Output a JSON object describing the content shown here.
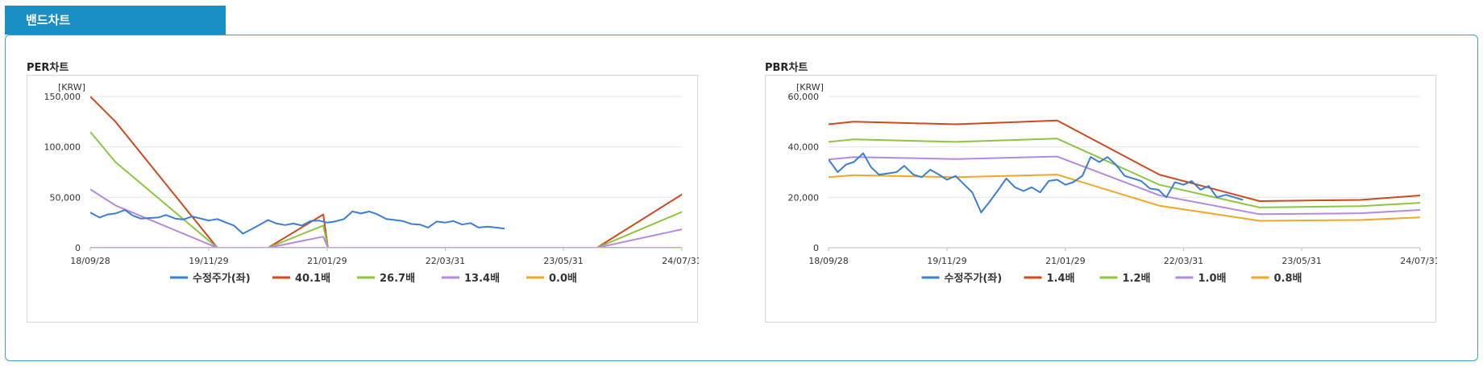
{
  "tab": {
    "label": "밴드차트"
  },
  "charts": [
    {
      "panel_title": "PER차트",
      "chart_data": {
        "type": "line",
        "title": "PER차트",
        "ylabel": "[KRW]",
        "y_ticks": [
          0,
          50000,
          100000,
          150000
        ],
        "y_tick_labels": [
          "0",
          "50,000",
          "100,000",
          "150,000"
        ],
        "ylim": [
          0,
          150000
        ],
        "x_ticks": [
          "18/09/28",
          "19/11/29",
          "21/01/29",
          "22/03/31",
          "23/05/31",
          "24/07/31"
        ],
        "xlim": [
          "2018-09-28",
          "2024-07-31"
        ],
        "legend_position": "bottom",
        "grid": true,
        "series": [
          {
            "name": "수정주가(좌)",
            "color": "#3a7fd5",
            "x": [
              "2018-09-28",
              "2018-10-31",
              "2018-11-30",
              "2018-12-28",
              "2019-01-31",
              "2019-02-28",
              "2019-03-29",
              "2019-04-30",
              "2019-05-31",
              "2019-06-28",
              "2019-07-31",
              "2019-08-30",
              "2019-09-30",
              "2019-10-31",
              "2019-11-29",
              "2019-12-30",
              "2020-01-31",
              "2020-02-28",
              "2020-03-31",
              "2020-04-29",
              "2020-05-29",
              "2020-06-30",
              "2020-07-31",
              "2020-08-31",
              "2020-09-29",
              "2020-10-30",
              "2020-11-30",
              "2020-12-30",
              "2021-01-29",
              "2021-02-26",
              "2021-03-31",
              "2021-04-30",
              "2021-05-31",
              "2021-06-30",
              "2021-07-30",
              "2021-08-31",
              "2021-09-30",
              "2021-10-29",
              "2021-11-30",
              "2021-12-30",
              "2022-01-28",
              "2022-02-28",
              "2022-03-31",
              "2022-04-29",
              "2022-05-31",
              "2022-06-30",
              "2022-07-29",
              "2022-08-31",
              "2022-09-30",
              "2022-10-31"
            ],
            "y": [
              35000,
              30000,
              33000,
              34000,
              37500,
              32000,
              29000,
              29500,
              30000,
              32500,
              29000,
              28000,
              31000,
              29000,
              27000,
              28500,
              25000,
              22000,
              14000,
              18000,
              22500,
              27500,
              24000,
              22500,
              24000,
              22000,
              26500,
              27000,
              25000,
              26000,
              28500,
              36000,
              34000,
              36000,
              33000,
              28500,
              27500,
              26500,
              23500,
              23000,
              20000,
              26000,
              25000,
              26500,
              23000,
              24500,
              20000,
              21000,
              20000,
              19000
            ]
          },
          {
            "name": "40.1배",
            "color": "#cc4a1e",
            "x": [
              "2018-09-28",
              "2018-12-28",
              "2019-12-30",
              "2020-06-30",
              "2021-01-15",
              "2021-02-01",
              "2023-09-29",
              "2024-08-30"
            ],
            "y": [
              150000,
              125000,
              0,
              0,
              33000,
              0,
              0,
              58000
            ]
          },
          {
            "name": "26.7배",
            "color": "#8dc63f",
            "x": [
              "2018-09-28",
              "2018-12-28",
              "2019-12-30",
              "2020-06-30",
              "2021-01-15",
              "2021-02-01",
              "2023-09-29",
              "2024-08-30"
            ],
            "y": [
              115000,
              85000,
              0,
              0,
              22000,
              0,
              0,
              39000
            ]
          },
          {
            "name": "13.4배",
            "color": "#b48ae0",
            "x": [
              "2018-09-28",
              "2018-12-28",
              "2019-12-30",
              "2020-06-30",
              "2021-01-15",
              "2021-02-01",
              "2023-09-29",
              "2024-08-30"
            ],
            "y": [
              58000,
              42000,
              0,
              0,
              11000,
              0,
              0,
              20000
            ]
          },
          {
            "name": "0.0배",
            "color": "#f5a623",
            "x": [
              "2018-09-28",
              "2024-08-30"
            ],
            "y": [
              0,
              0
            ]
          }
        ]
      }
    },
    {
      "panel_title": "PBR차트",
      "chart_data": {
        "type": "line",
        "title": "PBR차트",
        "ylabel": "[KRW]",
        "y_ticks": [
          0,
          20000,
          40000,
          60000
        ],
        "y_tick_labels": [
          "0",
          "20,000",
          "40,000",
          "60,000"
        ],
        "ylim": [
          0,
          60000
        ],
        "x_ticks": [
          "18/09/28",
          "19/11/29",
          "21/01/29",
          "22/03/31",
          "23/05/31",
          "24/07/31"
        ],
        "xlim": [
          "2018-09-28",
          "2024-07-31"
        ],
        "legend_position": "bottom",
        "grid": true,
        "series": [
          {
            "name": "수정주가(좌)",
            "color": "#3a7fd5",
            "x": [
              "2018-09-28",
              "2018-10-31",
              "2018-11-30",
              "2018-12-28",
              "2019-01-31",
              "2019-02-28",
              "2019-03-29",
              "2019-04-30",
              "2019-05-31",
              "2019-06-28",
              "2019-07-31",
              "2019-08-30",
              "2019-09-30",
              "2019-10-31",
              "2019-11-29",
              "2019-12-30",
              "2020-01-31",
              "2020-02-28",
              "2020-03-31",
              "2020-04-29",
              "2020-05-29",
              "2020-06-30",
              "2020-07-31",
              "2020-08-31",
              "2020-09-29",
              "2020-10-30",
              "2020-11-30",
              "2020-12-30",
              "2021-01-29",
              "2021-02-26",
              "2021-03-31",
              "2021-04-30",
              "2021-05-31",
              "2021-06-30",
              "2021-07-30",
              "2021-08-31",
              "2021-09-30",
              "2021-10-29",
              "2021-11-30",
              "2021-12-30",
              "2022-01-28",
              "2022-02-28",
              "2022-03-31",
              "2022-04-29",
              "2022-05-31",
              "2022-06-30",
              "2022-07-29",
              "2022-08-31",
              "2022-09-30",
              "2022-10-31"
            ],
            "y": [
              35000,
              30000,
              33000,
              34000,
              37500,
              32000,
              29000,
              29500,
              30000,
              32500,
              29000,
              28000,
              31000,
              29000,
              27000,
              28500,
              25000,
              22000,
              14000,
              18000,
              22500,
              27500,
              24000,
              22500,
              24000,
              22000,
              26500,
              27000,
              25000,
              26000,
              28500,
              36000,
              34000,
              36000,
              33000,
              28500,
              27500,
              26500,
              23500,
              23000,
              20000,
              26000,
              25000,
              26500,
              23000,
              24500,
              20000,
              21000,
              20000,
              19000
            ]
          },
          {
            "name": "1.4배",
            "color": "#cc4a1e",
            "x": [
              "2018-09-28",
              "2018-12-28",
              "2019-12-30",
              "2020-12-30",
              "2022-01-03",
              "2022-12-30",
              "2023-12-29",
              "2024-08-30"
            ],
            "y": [
              49000,
              50000,
              49000,
              50500,
              29000,
              18500,
              19000,
              21000
            ]
          },
          {
            "name": "1.2배",
            "color": "#8dc63f",
            "x": [
              "2018-09-28",
              "2018-12-28",
              "2019-12-30",
              "2020-12-30",
              "2022-01-03",
              "2022-12-30",
              "2023-12-29",
              "2024-08-30"
            ],
            "y": [
              42000,
              43000,
              42000,
              43300,
              25000,
              16000,
              16500,
              18000
            ]
          },
          {
            "name": "1.0배",
            "color": "#b48ae0",
            "x": [
              "2018-09-28",
              "2018-12-28",
              "2019-12-30",
              "2020-12-30",
              "2022-01-03",
              "2022-12-30",
              "2023-12-29",
              "2024-08-30"
            ],
            "y": [
              35000,
              36000,
              35200,
              36200,
              20800,
              13300,
              13700,
              15200
            ]
          },
          {
            "name": "0.8배",
            "color": "#f5a623",
            "x": [
              "2018-09-28",
              "2018-12-28",
              "2019-12-30",
              "2020-12-30",
              "2022-01-03",
              "2022-12-30",
              "2023-12-29",
              "2024-08-30"
            ],
            "y": [
              28000,
              28800,
              28000,
              29000,
              16700,
              10700,
              11000,
              12200
            ]
          }
        ]
      }
    }
  ]
}
